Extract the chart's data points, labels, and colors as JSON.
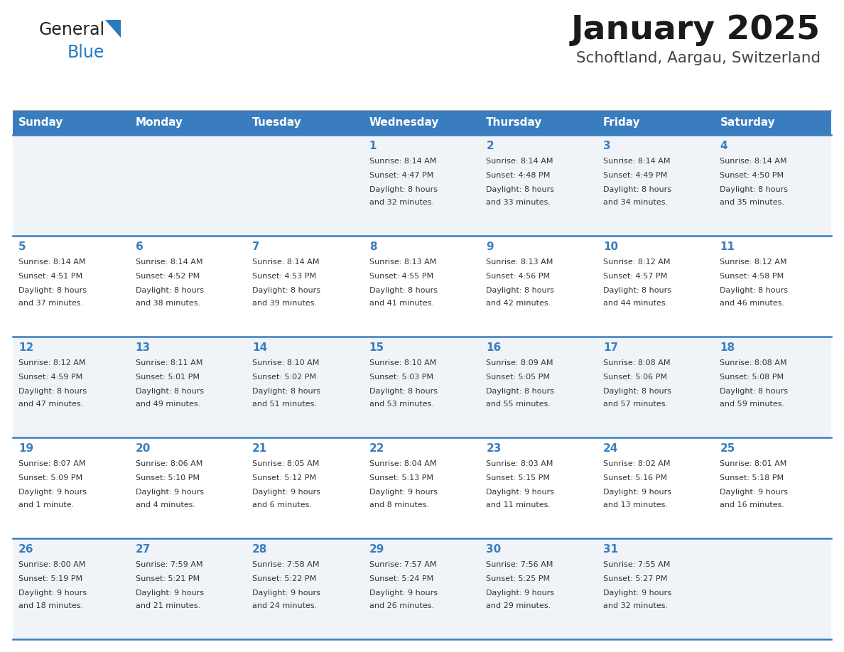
{
  "title": "January 2025",
  "subtitle": "Schoftland, Aargau, Switzerland",
  "days_of_week": [
    "Sunday",
    "Monday",
    "Tuesday",
    "Wednesday",
    "Thursday",
    "Friday",
    "Saturday"
  ],
  "header_bg": "#3a7dbf",
  "header_text": "#ffffff",
  "row_bg_odd": "#f0f4f8",
  "row_bg_even": "#ffffff",
  "day_number_color": "#3a7dbf",
  "text_color": "#333333",
  "separator_color": "#3a7dbf",
  "logo_general_color": "#222222",
  "logo_blue_color": "#2a7abf",
  "logo_triangle_color": "#2a7abf",
  "calendar_data": [
    [
      {
        "day": null,
        "sunrise": null,
        "sunset": null,
        "daylight_h": null,
        "daylight_m": null
      },
      {
        "day": null,
        "sunrise": null,
        "sunset": null,
        "daylight_h": null,
        "daylight_m": null
      },
      {
        "day": null,
        "sunrise": null,
        "sunset": null,
        "daylight_h": null,
        "daylight_m": null
      },
      {
        "day": 1,
        "sunrise": "8:14 AM",
        "sunset": "4:47 PM",
        "daylight_h": "8 hours",
        "daylight_m": "and 32 minutes."
      },
      {
        "day": 2,
        "sunrise": "8:14 AM",
        "sunset": "4:48 PM",
        "daylight_h": "8 hours",
        "daylight_m": "and 33 minutes."
      },
      {
        "day": 3,
        "sunrise": "8:14 AM",
        "sunset": "4:49 PM",
        "daylight_h": "8 hours",
        "daylight_m": "and 34 minutes."
      },
      {
        "day": 4,
        "sunrise": "8:14 AM",
        "sunset": "4:50 PM",
        "daylight_h": "8 hours",
        "daylight_m": "and 35 minutes."
      }
    ],
    [
      {
        "day": 5,
        "sunrise": "8:14 AM",
        "sunset": "4:51 PM",
        "daylight_h": "8 hours",
        "daylight_m": "and 37 minutes."
      },
      {
        "day": 6,
        "sunrise": "8:14 AM",
        "sunset": "4:52 PM",
        "daylight_h": "8 hours",
        "daylight_m": "and 38 minutes."
      },
      {
        "day": 7,
        "sunrise": "8:14 AM",
        "sunset": "4:53 PM",
        "daylight_h": "8 hours",
        "daylight_m": "and 39 minutes."
      },
      {
        "day": 8,
        "sunrise": "8:13 AM",
        "sunset": "4:55 PM",
        "daylight_h": "8 hours",
        "daylight_m": "and 41 minutes."
      },
      {
        "day": 9,
        "sunrise": "8:13 AM",
        "sunset": "4:56 PM",
        "daylight_h": "8 hours",
        "daylight_m": "and 42 minutes."
      },
      {
        "day": 10,
        "sunrise": "8:12 AM",
        "sunset": "4:57 PM",
        "daylight_h": "8 hours",
        "daylight_m": "and 44 minutes."
      },
      {
        "day": 11,
        "sunrise": "8:12 AM",
        "sunset": "4:58 PM",
        "daylight_h": "8 hours",
        "daylight_m": "and 46 minutes."
      }
    ],
    [
      {
        "day": 12,
        "sunrise": "8:12 AM",
        "sunset": "4:59 PM",
        "daylight_h": "8 hours",
        "daylight_m": "and 47 minutes."
      },
      {
        "day": 13,
        "sunrise": "8:11 AM",
        "sunset": "5:01 PM",
        "daylight_h": "8 hours",
        "daylight_m": "and 49 minutes."
      },
      {
        "day": 14,
        "sunrise": "8:10 AM",
        "sunset": "5:02 PM",
        "daylight_h": "8 hours",
        "daylight_m": "and 51 minutes."
      },
      {
        "day": 15,
        "sunrise": "8:10 AM",
        "sunset": "5:03 PM",
        "daylight_h": "8 hours",
        "daylight_m": "and 53 minutes."
      },
      {
        "day": 16,
        "sunrise": "8:09 AM",
        "sunset": "5:05 PM",
        "daylight_h": "8 hours",
        "daylight_m": "and 55 minutes."
      },
      {
        "day": 17,
        "sunrise": "8:08 AM",
        "sunset": "5:06 PM",
        "daylight_h": "8 hours",
        "daylight_m": "and 57 minutes."
      },
      {
        "day": 18,
        "sunrise": "8:08 AM",
        "sunset": "5:08 PM",
        "daylight_h": "8 hours",
        "daylight_m": "and 59 minutes."
      }
    ],
    [
      {
        "day": 19,
        "sunrise": "8:07 AM",
        "sunset": "5:09 PM",
        "daylight_h": "9 hours",
        "daylight_m": "and 1 minute."
      },
      {
        "day": 20,
        "sunrise": "8:06 AM",
        "sunset": "5:10 PM",
        "daylight_h": "9 hours",
        "daylight_m": "and 4 minutes."
      },
      {
        "day": 21,
        "sunrise": "8:05 AM",
        "sunset": "5:12 PM",
        "daylight_h": "9 hours",
        "daylight_m": "and 6 minutes."
      },
      {
        "day": 22,
        "sunrise": "8:04 AM",
        "sunset": "5:13 PM",
        "daylight_h": "9 hours",
        "daylight_m": "and 8 minutes."
      },
      {
        "day": 23,
        "sunrise": "8:03 AM",
        "sunset": "5:15 PM",
        "daylight_h": "9 hours",
        "daylight_m": "and 11 minutes."
      },
      {
        "day": 24,
        "sunrise": "8:02 AM",
        "sunset": "5:16 PM",
        "daylight_h": "9 hours",
        "daylight_m": "and 13 minutes."
      },
      {
        "day": 25,
        "sunrise": "8:01 AM",
        "sunset": "5:18 PM",
        "daylight_h": "9 hours",
        "daylight_m": "and 16 minutes."
      }
    ],
    [
      {
        "day": 26,
        "sunrise": "8:00 AM",
        "sunset": "5:19 PM",
        "daylight_h": "9 hours",
        "daylight_m": "and 18 minutes."
      },
      {
        "day": 27,
        "sunrise": "7:59 AM",
        "sunset": "5:21 PM",
        "daylight_h": "9 hours",
        "daylight_m": "and 21 minutes."
      },
      {
        "day": 28,
        "sunrise": "7:58 AM",
        "sunset": "5:22 PM",
        "daylight_h": "9 hours",
        "daylight_m": "and 24 minutes."
      },
      {
        "day": 29,
        "sunrise": "7:57 AM",
        "sunset": "5:24 PM",
        "daylight_h": "9 hours",
        "daylight_m": "and 26 minutes."
      },
      {
        "day": 30,
        "sunrise": "7:56 AM",
        "sunset": "5:25 PM",
        "daylight_h": "9 hours",
        "daylight_m": "and 29 minutes."
      },
      {
        "day": 31,
        "sunrise": "7:55 AM",
        "sunset": "5:27 PM",
        "daylight_h": "9 hours",
        "daylight_m": "and 32 minutes."
      },
      {
        "day": null,
        "sunrise": null,
        "sunset": null,
        "daylight_h": null,
        "daylight_m": null
      }
    ]
  ]
}
